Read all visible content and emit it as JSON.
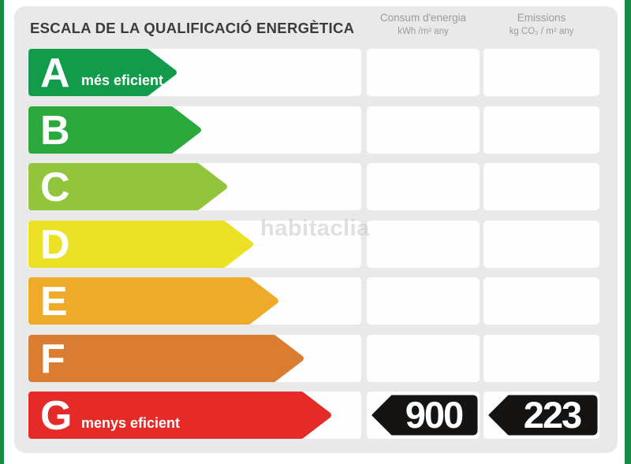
{
  "header": {
    "title": "ESCALA DE LA QUALIFICACIÓ ENERGÈTICA",
    "columns": [
      {
        "label": "Consum d'energia",
        "unit": "kWh /m² any"
      },
      {
        "label": "Emissions",
        "unit": "kg CO₂ / m² any"
      }
    ]
  },
  "scale": {
    "rows": [
      {
        "letter": "A",
        "label": "més eficient",
        "color": "#129b4b",
        "arrow_width": 191
      },
      {
        "letter": "B",
        "label": "",
        "color": "#2ba93c",
        "arrow_width": 222
      },
      {
        "letter": "C",
        "label": "",
        "color": "#93c53c",
        "arrow_width": 255
      },
      {
        "letter": "D",
        "label": "",
        "color": "#ebe126",
        "arrow_width": 288
      },
      {
        "letter": "E",
        "label": "",
        "color": "#eeab29",
        "arrow_width": 320
      },
      {
        "letter": "F",
        "label": "",
        "color": "#da7c31",
        "arrow_width": 352
      },
      {
        "letter": "G",
        "label": "menys eficient",
        "color": "#e52a28",
        "arrow_width": 387
      }
    ],
    "rated_letter": "G"
  },
  "rating_values": {
    "consum": "900",
    "emissions": "223"
  },
  "watermark": "habitaclia",
  "colors": {
    "stripe_green": "#168c47",
    "card_bg": "#e9e9e9",
    "badge_black": "#161313"
  },
  "chart_data": {
    "type": "bar",
    "title": "ESCALA DE LA QUALIFICACIÓ ENERGÈTICA",
    "categories": [
      "A",
      "B",
      "C",
      "D",
      "E",
      "F",
      "G"
    ],
    "series": [
      {
        "name": "scale-arrow-relative-length",
        "values": [
          191,
          222,
          255,
          288,
          320,
          352,
          387
        ]
      }
    ],
    "category_labels": {
      "A": "més eficient",
      "G": "menys eficient"
    },
    "bar_colors": [
      "#129b4b",
      "#2ba93c",
      "#93c53c",
      "#ebe126",
      "#eeab29",
      "#da7c31",
      "#e52a28"
    ],
    "columns": [
      "Consum d'energia (kWh/m² any)",
      "Emissions (kg CO₂/m² any)"
    ],
    "rating": {
      "letter": "G",
      "consum_kwh_m2_any": 900,
      "emissions_kg_co2_m2_any": 223
    },
    "legend_position": "none",
    "grid": false
  }
}
